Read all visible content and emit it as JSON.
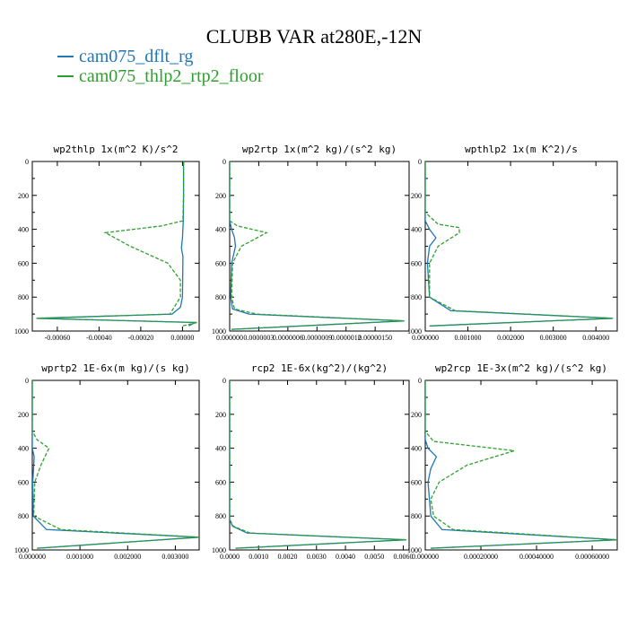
{
  "title": "CLUBB VAR at280E,-12N",
  "legend": [
    {
      "name": "cam075_dflt_rg",
      "color": "#1f77b4"
    },
    {
      "name": "cam075_thlp2_rtp2_floor",
      "color": "#2ca02c"
    }
  ],
  "chart_data": [
    {
      "type": "line",
      "title": "wp2thlp  1x(m^2 K)/s^2",
      "xlim": [
        -0.00072,
        8e-05
      ],
      "ylim": [
        0,
        1000
      ],
      "y_inverted": true,
      "xticks": [
        "-0.00060",
        "-0.00040",
        "-0.00020",
        "0.00000"
      ],
      "xtick_values": [
        -0.0006,
        -0.0004,
        -0.0002,
        0.0
      ],
      "yticks": [
        "0",
        "200",
        "400",
        "600",
        "800",
        "1000"
      ],
      "series": [
        {
          "name": "cam075_dflt_rg",
          "x": [
            5e-06,
            5e-06,
            4e-06,
            0.0,
            -5e-06,
            2e-06,
            1e-06,
            0.0,
            -1e-05,
            -5e-05,
            -0.0007,
            6e-05,
            3e-05
          ],
          "y": [
            0,
            200,
            350,
            450,
            510,
            560,
            700,
            800,
            860,
            900,
            925,
            950,
            970
          ]
        },
        {
          "name": "cam075_thlp2_rtp2_floor",
          "x": [
            5e-06,
            5e-06,
            2e-06,
            -0.0001,
            -0.00037,
            -0.00025,
            -7e-05,
            -1e-05,
            -1e-05,
            -6e-05,
            -0.0007,
            7e-05,
            0.0
          ],
          "y": [
            0,
            200,
            350,
            380,
            420,
            500,
            600,
            700,
            800,
            900,
            925,
            950,
            970
          ]
        }
      ]
    },
    {
      "type": "line",
      "title": "wp2rtp  1x(m^2 kg)/(s^2 kg)",
      "xlim": [
        0,
        1.85e-06
      ],
      "ylim": [
        0,
        1000
      ],
      "y_inverted": true,
      "xticks": [
        "0.000000",
        "0.0000003",
        "0.0000006",
        "0.0000009",
        "0.0000012",
        "0.00000150"
      ],
      "xtick_values": [
        0,
        3e-07,
        6e-07,
        9e-07,
        1.2e-06,
        1.5e-06
      ],
      "yticks": [
        "0",
        "200",
        "400",
        "600",
        "800",
        "1000"
      ],
      "series": [
        {
          "name": "cam075_dflt_rg",
          "x": [
            0,
            0,
            2e-08,
            5e-08,
            6e-08,
            2e-08,
            1e-08,
            3e-08,
            2e-07,
            1.8e-06,
            2e-08
          ],
          "y": [
            0,
            350,
            400,
            450,
            500,
            600,
            800,
            870,
            900,
            940,
            990
          ]
        },
        {
          "name": "cam075_thlp2_rtp2_floor",
          "x": [
            0,
            0,
            8e-08,
            3.8e-07,
            1.2e-07,
            3e-08,
            2e-08,
            5e-08,
            2.8e-07,
            1.8e-06,
            2e-08
          ],
          "y": [
            0,
            350,
            380,
            420,
            500,
            600,
            800,
            870,
            900,
            940,
            990
          ]
        }
      ]
    },
    {
      "type": "line",
      "title": "wpthlp2  1x(m K^2)/s",
      "xlim": [
        0,
        0.0045
      ],
      "ylim": [
        0,
        1000
      ],
      "y_inverted": true,
      "xticks": [
        "0.000000",
        "0.001000",
        "0.002000",
        "0.003000",
        "0.004000"
      ],
      "xtick_values": [
        0,
        0.001,
        0.002,
        0.003,
        0.004
      ],
      "yticks": [
        "0",
        "200",
        "400",
        "600",
        "800",
        "1000"
      ],
      "series": [
        {
          "name": "cam075_dflt_rg",
          "x": [
            0,
            0,
            0.0001,
            0.00025,
            0.0001,
            5e-05,
            0.0001,
            0.0006,
            0.0044,
            0.0001
          ],
          "y": [
            0,
            350,
            400,
            450,
            500,
            600,
            800,
            880,
            925,
            970
          ]
        },
        {
          "name": "cam075_thlp2_rtp2_floor",
          "x": [
            0,
            0,
            0.0003,
            0.0008,
            0.0008,
            0.0003,
            0.0001,
            0.0001,
            0.0007,
            0.0044,
            0.0001
          ],
          "y": [
            0,
            300,
            370,
            390,
            420,
            500,
            600,
            800,
            880,
            925,
            970
          ]
        }
      ]
    },
    {
      "type": "line",
      "title": "wprtp2  1E-6x(m kg)/(s kg)",
      "xlim": [
        0,
        0.0035
      ],
      "ylim": [
        0,
        1000
      ],
      "y_inverted": true,
      "xticks": [
        "0.000000",
        "0.001000",
        "0.002000",
        "0.003000"
      ],
      "xtick_values": [
        0,
        0.001,
        0.002,
        0.003
      ],
      "yticks": [
        "0",
        "200",
        "400",
        "600",
        "800",
        "1000"
      ],
      "series": [
        {
          "name": "cam075_dflt_rg",
          "x": [
            0,
            0,
            4e-05,
            3e-05,
            1e-05,
            2e-05,
            0.0003,
            0.0035,
            0.0001
          ],
          "y": [
            0,
            400,
            450,
            500,
            600,
            800,
            880,
            925,
            990
          ]
        },
        {
          "name": "cam075_thlp2_rtp2_floor",
          "x": [
            0,
            0,
            0.0001,
            0.00035,
            0.00018,
            5e-05,
            3e-05,
            0.0006,
            0.0035,
            0.0001
          ],
          "y": [
            0,
            300,
            350,
            400,
            500,
            600,
            800,
            880,
            925,
            990
          ]
        }
      ]
    },
    {
      "type": "line",
      "title": "rcp2  1E-6x(kg^2)/(kg^2)",
      "xlim": [
        0,
        0.0062
      ],
      "ylim": [
        0,
        1000
      ],
      "y_inverted": true,
      "xticks": [
        "0.0000",
        "0.0010",
        "0.0020",
        "0.0030",
        "0.0040",
        "0.0050",
        "0.0060"
      ],
      "xtick_values": [
        0,
        0.001,
        0.002,
        0.003,
        0.004,
        0.005,
        0.006
      ],
      "yticks": [
        "0",
        "200",
        "400",
        "600",
        "800",
        "1000"
      ],
      "series": [
        {
          "name": "cam075_dflt_rg",
          "x": [
            0,
            0,
            0.0001,
            0.0006,
            0.0061,
            0.0002
          ],
          "y": [
            0,
            820,
            860,
            900,
            940,
            990
          ]
        },
        {
          "name": "cam075_thlp2_rtp2_floor",
          "x": [
            0,
            0,
            0.00012,
            0.0007,
            0.0061,
            0.0002
          ],
          "y": [
            0,
            820,
            860,
            900,
            940,
            990
          ]
        }
      ]
    },
    {
      "type": "line",
      "title": "wp2rcp  1E-3x(m^2 kg)/(s^2 kg)",
      "xlim": [
        0,
        0.00069
      ],
      "ylim": [
        0,
        1000
      ],
      "y_inverted": true,
      "xticks": [
        "0.000000",
        "0.00020000",
        "0.00040000",
        "0.00060000"
      ],
      "xtick_values": [
        0,
        0.0002,
        0.0004,
        0.0006
      ],
      "yticks": [
        "0",
        "200",
        "400",
        "600",
        "800",
        "1000"
      ],
      "series": [
        {
          "name": "cam075_dflt_rg",
          "x": [
            0,
            0,
            1e-05,
            4e-05,
            2e-05,
            1e-05,
            2e-05,
            6e-05,
            0.00069,
            2e-05
          ],
          "y": [
            0,
            350,
            400,
            450,
            520,
            600,
            800,
            880,
            940,
            990
          ]
        },
        {
          "name": "cam075_thlp2_rtp2_floor",
          "x": [
            0,
            0,
            3e-05,
            0.00032,
            0.00015,
            5e-05,
            2e-05,
            3e-05,
            0.0001,
            0.00069,
            2e-05
          ],
          "y": [
            0,
            300,
            360,
            415,
            500,
            600,
            700,
            800,
            880,
            940,
            990
          ]
        }
      ]
    }
  ]
}
